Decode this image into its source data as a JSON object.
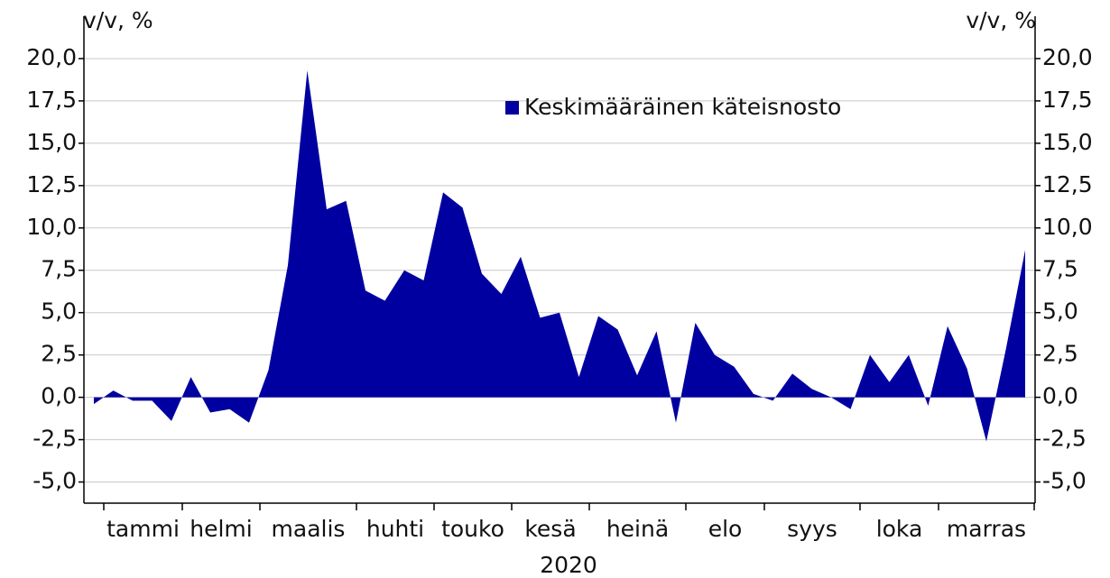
{
  "chart_data": {
    "type": "area",
    "ylabel": "v/v, %",
    "y2label": "v/v, %",
    "xlabel": "2020",
    "month_labels": [
      "tammi",
      "helmi",
      "maalis",
      "huhti",
      "touko",
      "kesä",
      "heinä",
      "elo",
      "syys",
      "loka",
      "marras"
    ],
    "categories": [
      null,
      null,
      null,
      null,
      null,
      null,
      null,
      null,
      null,
      null,
      null,
      null,
      null,
      null,
      null,
      null,
      null,
      null,
      null,
      null,
      null,
      null,
      null,
      null,
      null,
      null,
      null,
      null,
      null,
      null,
      null,
      null,
      null,
      null,
      null,
      null,
      null,
      null,
      null,
      null,
      null,
      null,
      null,
      null,
      null,
      null,
      null,
      null,
      null
    ],
    "series": [
      {
        "name": "Keskimääräinen käteisnosto",
        "color": "#0000a0",
        "values": [
          -0.4,
          0.4,
          -0.2,
          -0.2,
          -1.4,
          1.2,
          -0.9,
          -0.7,
          -1.5,
          1.6,
          7.8,
          19.3,
          11.1,
          11.6,
          6.3,
          5.7,
          7.5,
          6.9,
          12.1,
          11.2,
          7.3,
          6.1,
          8.3,
          4.7,
          5.0,
          1.2,
          4.8,
          4.0,
          1.3,
          3.9,
          -1.5,
          4.4,
          2.5,
          1.8,
          0.2,
          -0.2,
          1.4,
          0.5,
          0.0,
          -0.7,
          2.5,
          0.9,
          2.5,
          -0.5,
          4.2,
          1.7,
          -2.6,
          2.8,
          8.7
        ]
      }
    ],
    "ylim": [
      -6.25,
      22.5
    ],
    "yticks": [
      {
        "value": -5,
        "label": "-5,0"
      },
      {
        "value": -2.5,
        "label": "-2,5"
      },
      {
        "value": 0,
        "label": "0,0"
      },
      {
        "value": 2.5,
        "label": "2,5"
      },
      {
        "value": 5,
        "label": "5,0"
      },
      {
        "value": 7.5,
        "label": "7,5"
      },
      {
        "value": 10,
        "label": "10,0"
      },
      {
        "value": 12.5,
        "label": "12,5"
      },
      {
        "value": 15,
        "label": "15,0"
      },
      {
        "value": 17.5,
        "label": "17,5"
      },
      {
        "value": 20,
        "label": "20,0"
      }
    ],
    "y2lim": [
      -6.25,
      22.5
    ],
    "y2ticks": [
      {
        "value": -5,
        "label": "-5,0"
      },
      {
        "value": -2.5,
        "label": "-2,5"
      },
      {
        "value": 0,
        "label": "0,0"
      },
      {
        "value": 2.5,
        "label": "2,5"
      },
      {
        "value": 5,
        "label": "5,0"
      },
      {
        "value": 7.5,
        "label": "7,5"
      },
      {
        "value": 10,
        "label": "10,0"
      },
      {
        "value": 12.5,
        "label": "12,5"
      },
      {
        "value": 15,
        "label": "15,0"
      },
      {
        "value": 17.5,
        "label": "17,5"
      },
      {
        "value": 20,
        "label": "20,0"
      }
    ],
    "grid": true,
    "legend": "top"
  }
}
